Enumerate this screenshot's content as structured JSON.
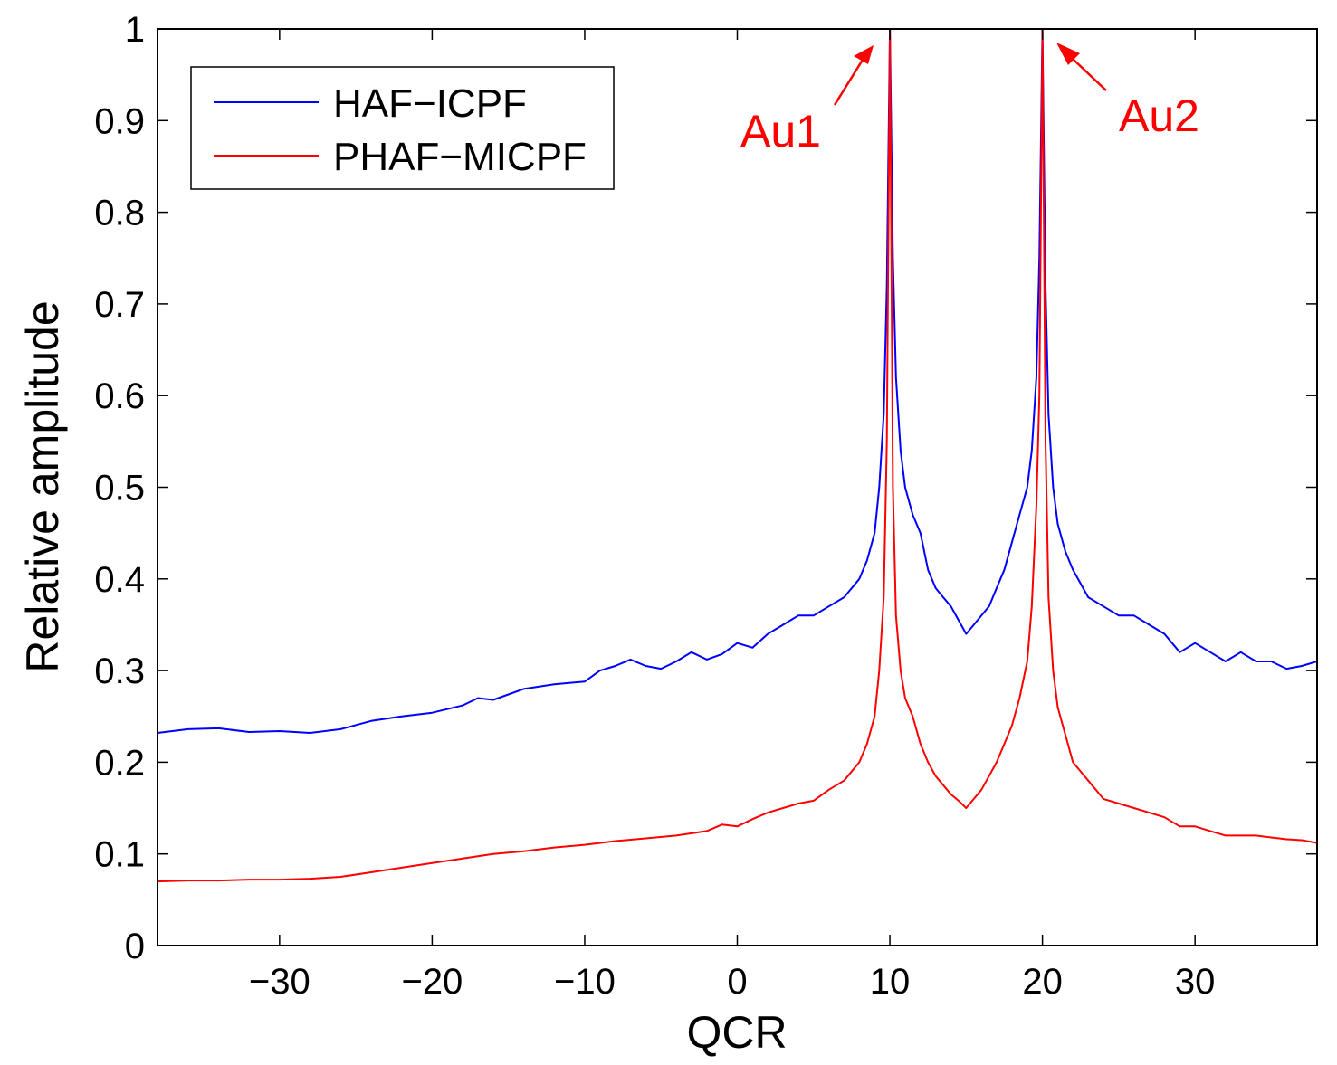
{
  "chart_data": {
    "type": "line",
    "title": "",
    "xlabel": "QCR",
    "ylabel": "Relative amplitude",
    "xlim": [
      -38,
      38
    ],
    "ylim": [
      0,
      1
    ],
    "grid": false,
    "legend_position": "top-left",
    "x_ticks": [
      -30,
      -20,
      -10,
      0,
      10,
      20,
      30
    ],
    "x_tick_labels": [
      "−30",
      "−20",
      "−10",
      "0",
      "10",
      "20",
      "30"
    ],
    "y_ticks": [
      0,
      0.1,
      0.2,
      0.3,
      0.4,
      0.5,
      0.6,
      0.7,
      0.8,
      0.9,
      1
    ],
    "y_tick_labels": [
      "0",
      "0.1",
      "0.2",
      "0.3",
      "0.4",
      "0.5",
      "0.6",
      "0.7",
      "0.8",
      "0.9",
      "1"
    ],
    "series": [
      {
        "name": "HAF−ICPF",
        "color": "#0000ff",
        "x": [
          -38,
          -36,
          -34,
          -32,
          -30,
          -28,
          -26,
          -24,
          -22,
          -20,
          -18,
          -17,
          -16,
          -14,
          -12,
          -10,
          -9,
          -8,
          -7,
          -6,
          -5,
          -4,
          -3,
          -2,
          -1,
          0,
          1,
          2,
          3,
          4,
          5,
          6,
          7,
          8,
          8.5,
          9,
          9.3,
          9.6,
          9.8,
          10,
          10.2,
          10.4,
          10.7,
          11,
          11.5,
          12,
          12.5,
          13,
          13.5,
          14,
          14.5,
          15,
          15.5,
          16,
          16.5,
          17,
          17.5,
          18,
          18.5,
          19,
          19.3,
          19.6,
          19.8,
          20,
          20.2,
          20.4,
          20.7,
          21,
          21.5,
          22,
          23,
          24,
          25,
          26,
          27,
          28,
          29,
          30,
          31,
          32,
          33,
          34,
          35,
          36,
          37,
          38
        ],
        "values": [
          0.232,
          0.236,
          0.237,
          0.233,
          0.234,
          0.232,
          0.236,
          0.245,
          0.25,
          0.254,
          0.262,
          0.27,
          0.268,
          0.28,
          0.285,
          0.288,
          0.3,
          0.305,
          0.312,
          0.305,
          0.302,
          0.31,
          0.32,
          0.312,
          0.318,
          0.33,
          0.325,
          0.34,
          0.35,
          0.36,
          0.36,
          0.37,
          0.38,
          0.4,
          0.42,
          0.45,
          0.5,
          0.58,
          0.72,
          1.0,
          0.75,
          0.62,
          0.54,
          0.5,
          0.47,
          0.45,
          0.41,
          0.39,
          0.38,
          0.37,
          0.355,
          0.34,
          0.35,
          0.36,
          0.37,
          0.39,
          0.41,
          0.44,
          0.47,
          0.5,
          0.54,
          0.62,
          0.75,
          1.0,
          0.72,
          0.58,
          0.5,
          0.46,
          0.43,
          0.41,
          0.38,
          0.37,
          0.36,
          0.36,
          0.35,
          0.34,
          0.32,
          0.33,
          0.32,
          0.31,
          0.32,
          0.31,
          0.31,
          0.302,
          0.305,
          0.31
        ]
      },
      {
        "name": "PHAF−MICPF",
        "color": "#ff0000",
        "x": [
          -38,
          -36,
          -34,
          -32,
          -30,
          -28,
          -26,
          -24,
          -22,
          -20,
          -18,
          -16,
          -14,
          -12,
          -10,
          -8,
          -6,
          -4,
          -2,
          -1,
          0,
          1,
          2,
          3,
          4,
          5,
          6,
          7,
          8,
          8.5,
          9,
          9.3,
          9.6,
          9.8,
          10,
          10.2,
          10.4,
          10.7,
          11,
          11.5,
          12,
          12.5,
          13,
          13.5,
          14,
          14.5,
          15,
          15.5,
          16,
          16.5,
          17,
          17.5,
          18,
          18.5,
          19,
          19.3,
          19.6,
          19.8,
          20,
          20.2,
          20.4,
          20.7,
          21,
          21.5,
          22,
          23,
          24,
          25,
          26,
          27,
          28,
          29,
          30,
          31,
          32,
          33,
          34,
          35,
          36,
          37,
          38
        ],
        "values": [
          0.07,
          0.071,
          0.071,
          0.072,
          0.072,
          0.073,
          0.075,
          0.08,
          0.085,
          0.09,
          0.095,
          0.1,
          0.103,
          0.107,
          0.11,
          0.114,
          0.117,
          0.12,
          0.125,
          0.132,
          0.13,
          0.138,
          0.145,
          0.15,
          0.155,
          0.158,
          0.17,
          0.18,
          0.2,
          0.22,
          0.25,
          0.3,
          0.38,
          0.55,
          1.0,
          0.5,
          0.36,
          0.3,
          0.27,
          0.25,
          0.22,
          0.2,
          0.185,
          0.175,
          0.165,
          0.158,
          0.15,
          0.16,
          0.17,
          0.185,
          0.2,
          0.22,
          0.24,
          0.27,
          0.31,
          0.37,
          0.48,
          0.6,
          1.0,
          0.55,
          0.38,
          0.3,
          0.26,
          0.23,
          0.2,
          0.18,
          0.16,
          0.155,
          0.15,
          0.145,
          0.14,
          0.13,
          0.13,
          0.125,
          0.12,
          0.12,
          0.12,
          0.118,
          0.116,
          0.115,
          0.112
        ]
      }
    ],
    "annotations": [
      {
        "text": "Au1",
        "color": "#ff0000",
        "arrow_to": [
          10,
          1.0
        ]
      },
      {
        "text": "Au2",
        "color": "#ff0000",
        "arrow_to": [
          20,
          1.0
        ]
      }
    ]
  }
}
